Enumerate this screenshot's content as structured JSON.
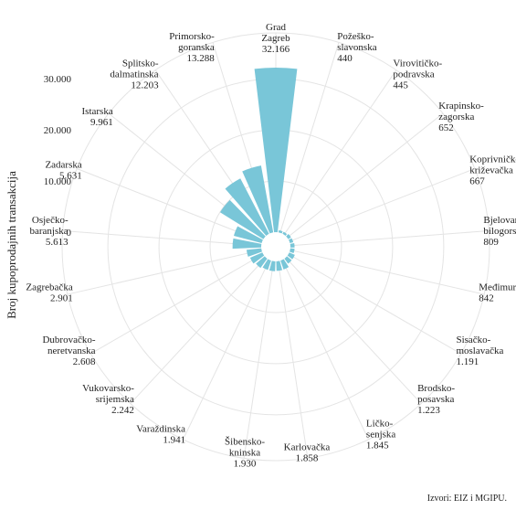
{
  "chart_data": {
    "type": "bar",
    "subtype": "polar-area",
    "ylabel": "Broj kupoprodajnih transakcija",
    "y_ticks": [
      "0",
      "10.000",
      "20.000",
      "30.000"
    ],
    "ylim": [
      0,
      32166
    ],
    "grid": true,
    "bar_color": "#79c6d8",
    "source": "Izvori: EIZ i MGIPU.",
    "categories": [
      {
        "name": [
          "Grad",
          "Zagreb"
        ],
        "value": 32166,
        "value_label": "32.166"
      },
      {
        "name": [
          "Požeško-",
          "slavonska"
        ],
        "value": 440,
        "value_label": "440"
      },
      {
        "name": [
          "Virovitičko-",
          "podravska"
        ],
        "value": 445,
        "value_label": "445"
      },
      {
        "name": [
          "Krapinsko-",
          "zagorska"
        ],
        "value": 652,
        "value_label": "652"
      },
      {
        "name": [
          "Koprivničko-",
          "križevačka"
        ],
        "value": 667,
        "value_label": "667"
      },
      {
        "name": [
          "Bjelovarsko-",
          "bilogorska"
        ],
        "value": 809,
        "value_label": "809"
      },
      {
        "name": [
          "Međimurska"
        ],
        "value": 842,
        "value_label": "842"
      },
      {
        "name": [
          "Sisačko-",
          "moslavačka"
        ],
        "value": 1191,
        "value_label": "1.191"
      },
      {
        "name": [
          "Brodsko-",
          "posavska"
        ],
        "value": 1223,
        "value_label": "1.223"
      },
      {
        "name": [
          "Ličko-",
          "senjska"
        ],
        "value": 1845,
        "value_label": "1.845"
      },
      {
        "name": [
          "Karlovačka"
        ],
        "value": 1858,
        "value_label": "1.858"
      },
      {
        "name": [
          "Šibensko-",
          "kninska"
        ],
        "value": 1930,
        "value_label": "1.930"
      },
      {
        "name": [
          "Varaždinska"
        ],
        "value": 1941,
        "value_label": "1.941"
      },
      {
        "name": [
          "Vukovarsko-",
          "srijemska"
        ],
        "value": 2242,
        "value_label": "2.242"
      },
      {
        "name": [
          "Dubrovačko-",
          "neretvanska"
        ],
        "value": 2608,
        "value_label": "2.608"
      },
      {
        "name": [
          "Zagrebačka"
        ],
        "value": 2901,
        "value_label": "2.901"
      },
      {
        "name": [
          "Osječko-",
          "baranjska"
        ],
        "value": 5613,
        "value_label": "5.613"
      },
      {
        "name": [
          "Zadarska"
        ],
        "value": 5631,
        "value_label": "5.631"
      },
      {
        "name": [
          "Istarska"
        ],
        "value": 9961,
        "value_label": "9.961"
      },
      {
        "name": [
          "Splitsko-",
          "dalmatinska"
        ],
        "value": 12203,
        "value_label": "12.203"
      },
      {
        "name": [
          "Primorsko-",
          "goranska"
        ],
        "value": 13288,
        "value_label": "13.288"
      }
    ]
  }
}
